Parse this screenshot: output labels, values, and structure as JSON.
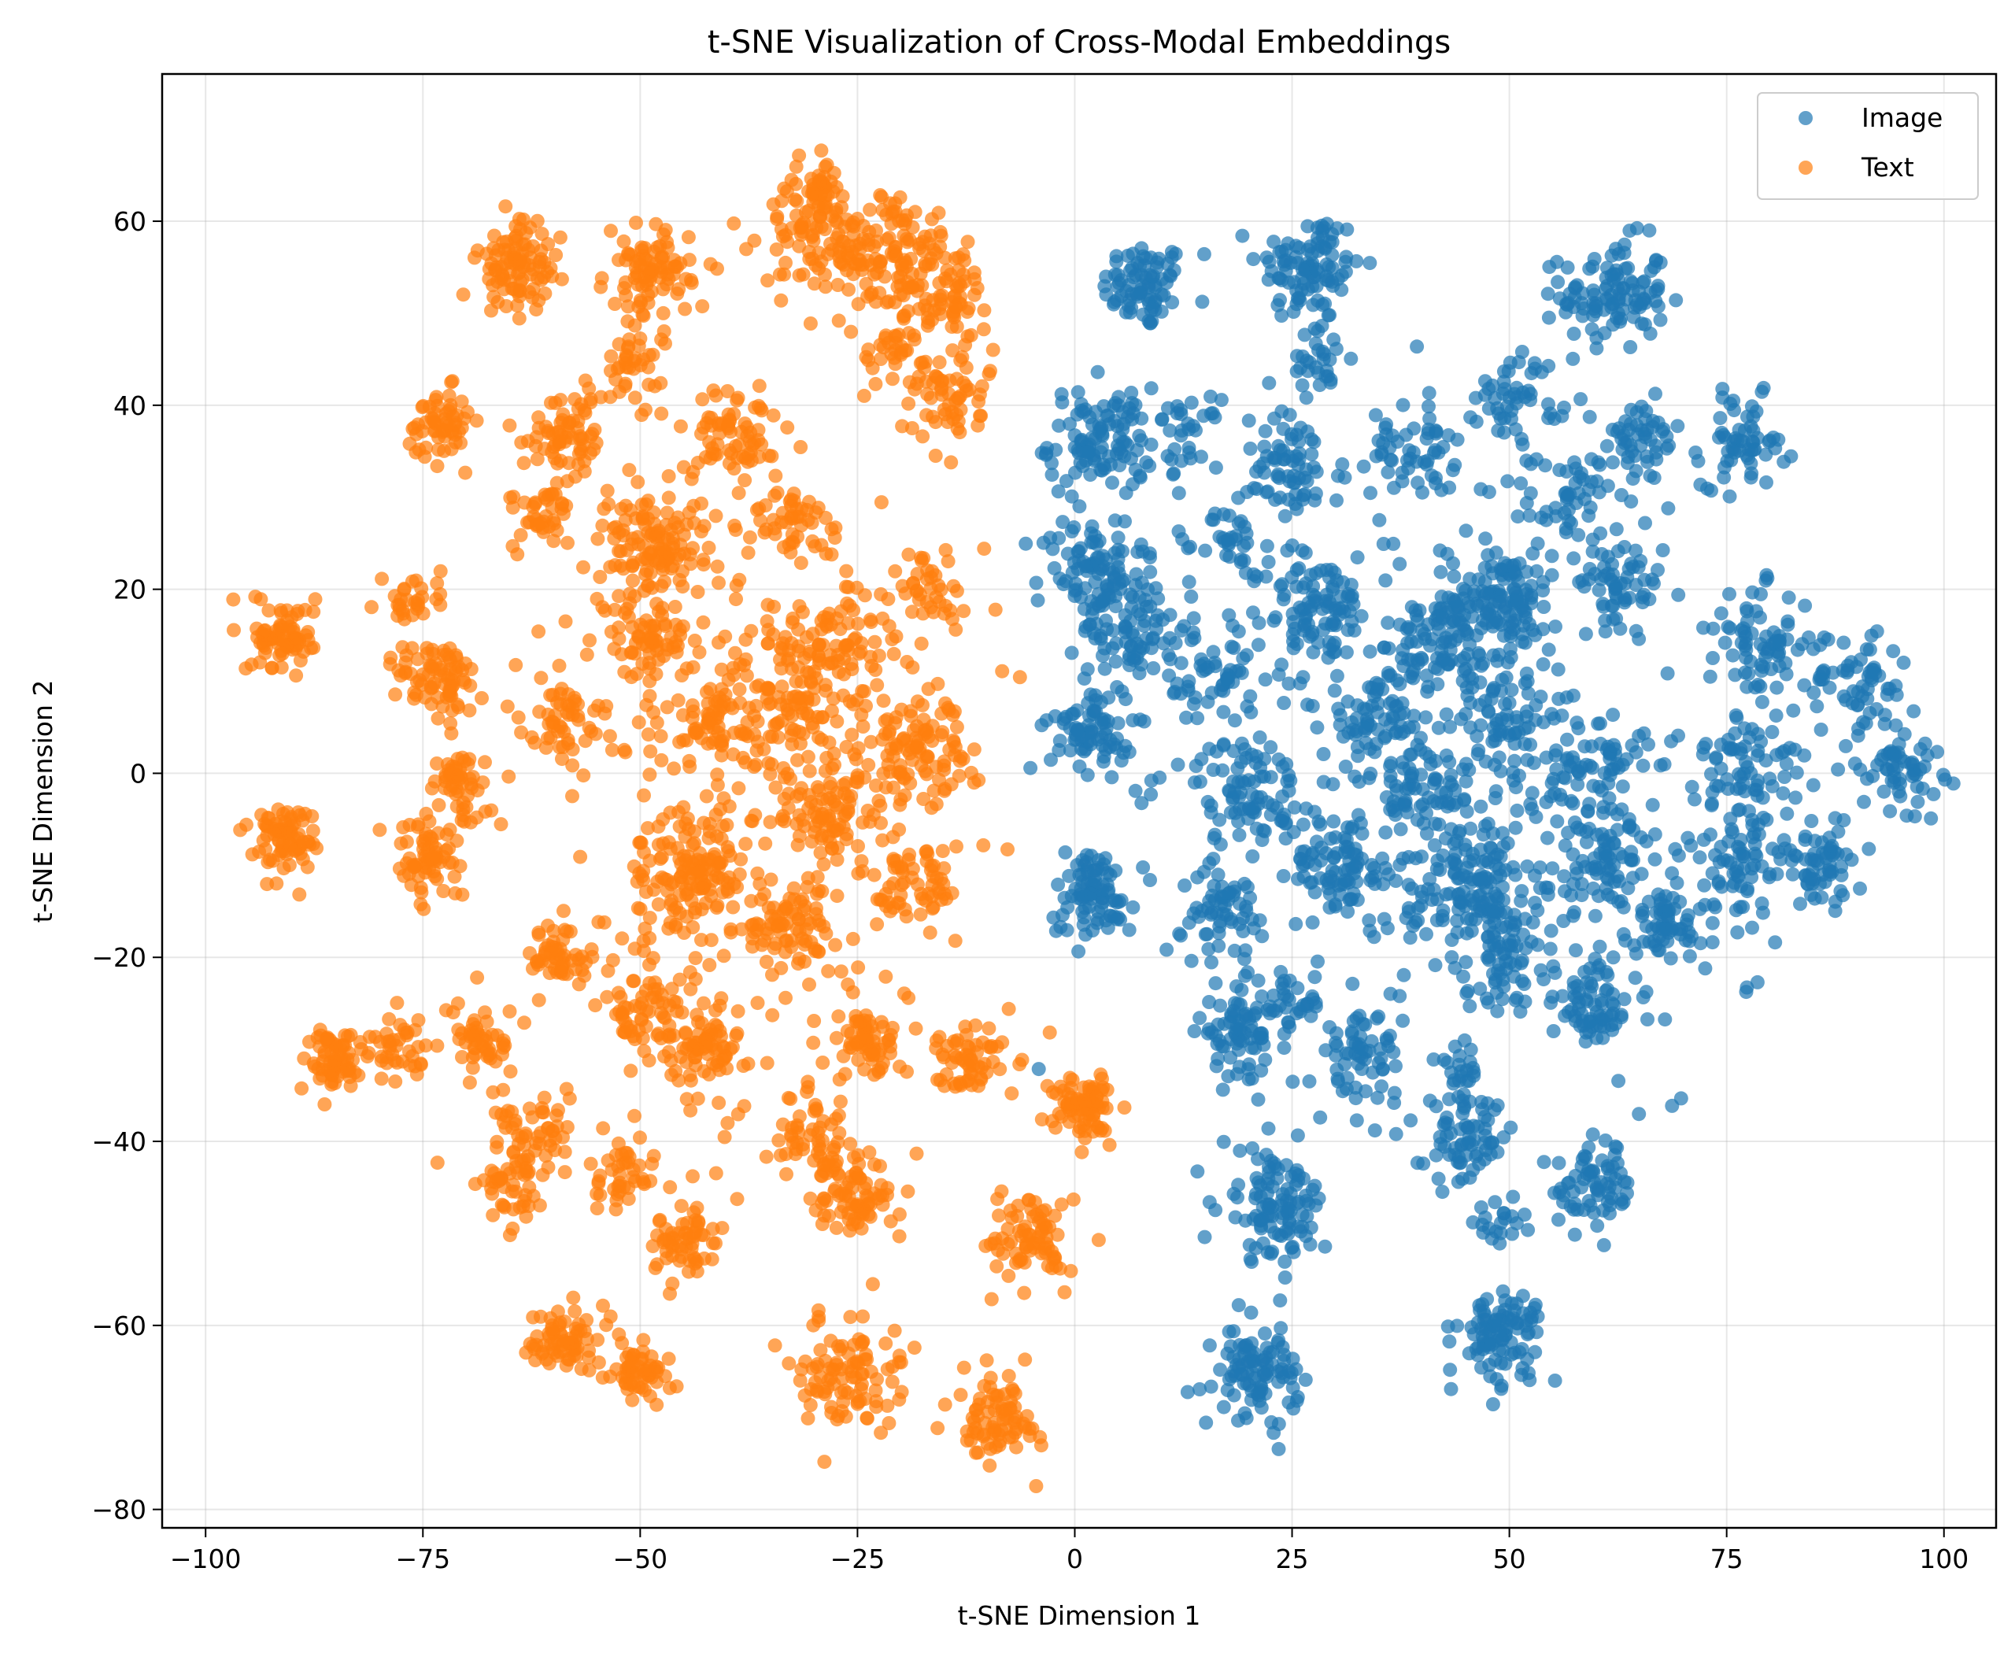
{
  "chart_data": {
    "type": "scatter",
    "title": "t-SNE Visualization of Cross-Modal Embeddings",
    "xlabel": "t-SNE Dimension 1",
    "ylabel": "t-SNE Dimension 2",
    "xlim": [
      -105,
      106
    ],
    "ylim": [
      -82,
      76
    ],
    "xticks": [
      -100,
      -75,
      -50,
      -25,
      0,
      25,
      50,
      75,
      100
    ],
    "xtick_labels": [
      "−100",
      "−75",
      "−50",
      "−25",
      "0",
      "25",
      "50",
      "75",
      "100"
    ],
    "yticks": [
      -80,
      -60,
      -40,
      -20,
      0,
      20,
      40,
      60
    ],
    "ytick_labels": [
      "−80",
      "−60",
      "−40",
      "−20",
      "0",
      "20",
      "40",
      "60"
    ],
    "grid": true,
    "legend_position": "top-right",
    "series": [
      {
        "name": "Image",
        "color": "#1f77b4",
        "alpha": 0.7,
        "clusters": [
          {
            "cx": 8,
            "cy": 53,
            "r": 4,
            "n": 80
          },
          {
            "cx": 27,
            "cy": 55,
            "r": 5,
            "n": 100
          },
          {
            "cx": 62,
            "cy": 52,
            "r": 5,
            "n": 110
          },
          {
            "cx": 28,
            "cy": 45,
            "r": 3,
            "n": 30
          },
          {
            "cx": 3,
            "cy": 36,
            "r": 5,
            "n": 110
          },
          {
            "cx": 13,
            "cy": 37,
            "r": 3,
            "n": 30
          },
          {
            "cx": 25,
            "cy": 33,
            "r": 5,
            "n": 70
          },
          {
            "cx": 39,
            "cy": 35,
            "r": 4,
            "n": 50
          },
          {
            "cx": 51,
            "cy": 41,
            "r": 4,
            "n": 50
          },
          {
            "cx": 57,
            "cy": 30,
            "r": 4,
            "n": 50
          },
          {
            "cx": 65,
            "cy": 36,
            "r": 4,
            "n": 50
          },
          {
            "cx": 77,
            "cy": 36,
            "r": 4,
            "n": 60
          },
          {
            "cx": 2,
            "cy": 22,
            "r": 5,
            "n": 90
          },
          {
            "cx": 7,
            "cy": 16,
            "r": 5,
            "n": 80
          },
          {
            "cx": 18,
            "cy": 25,
            "r": 3,
            "n": 30
          },
          {
            "cx": 28,
            "cy": 18,
            "r": 5,
            "n": 80
          },
          {
            "cx": 42,
            "cy": 14,
            "r": 4,
            "n": 60
          },
          {
            "cx": 49,
            "cy": 19,
            "r": 5,
            "n": 130
          },
          {
            "cx": 63,
            "cy": 21,
            "r": 4,
            "n": 60
          },
          {
            "cx": 79,
            "cy": 14,
            "r": 5,
            "n": 70
          },
          {
            "cx": 90,
            "cy": 10,
            "r": 5,
            "n": 60
          },
          {
            "cx": 2,
            "cy": 5,
            "r": 4,
            "n": 80
          },
          {
            "cx": 16,
            "cy": 10,
            "r": 5,
            "n": 50
          },
          {
            "cx": 35,
            "cy": 6,
            "r": 4,
            "n": 50
          },
          {
            "cx": 49,
            "cy": 6,
            "r": 4,
            "n": 50
          },
          {
            "cx": 95,
            "cy": 1,
            "r": 4,
            "n": 60
          },
          {
            "cx": 20,
            "cy": -2,
            "r": 5,
            "n": 80
          },
          {
            "cx": 40,
            "cy": -2,
            "r": 5,
            "n": 60
          },
          {
            "cx": 60,
            "cy": 0,
            "r": 5,
            "n": 60
          },
          {
            "cx": 78,
            "cy": 1,
            "r": 5,
            "n": 70
          },
          {
            "cx": 2,
            "cy": -13,
            "r": 4,
            "n": 90
          },
          {
            "cx": 17,
            "cy": -15,
            "r": 4,
            "n": 60
          },
          {
            "cx": 31,
            "cy": -10,
            "r": 5,
            "n": 90
          },
          {
            "cx": 46,
            "cy": -12,
            "r": 6,
            "n": 130
          },
          {
            "cx": 62,
            "cy": -10,
            "r": 5,
            "n": 70
          },
          {
            "cx": 76,
            "cy": -10,
            "r": 5,
            "n": 70
          },
          {
            "cx": 86,
            "cy": -10,
            "r": 4,
            "n": 60
          },
          {
            "cx": 50,
            "cy": -20,
            "r": 4,
            "n": 60
          },
          {
            "cx": 68,
            "cy": -17,
            "r": 4,
            "n": 50
          },
          {
            "cx": 60,
            "cy": -25,
            "r": 4,
            "n": 70
          },
          {
            "cx": 19,
            "cy": -28,
            "r": 4,
            "n": 80
          },
          {
            "cx": 33,
            "cy": -31,
            "r": 4,
            "n": 60
          },
          {
            "cx": 25,
            "cy": -25,
            "r": 3,
            "n": 30
          },
          {
            "cx": 44,
            "cy": -32,
            "r": 2,
            "n": 20
          },
          {
            "cx": 45,
            "cy": -40,
            "r": 4,
            "n": 70
          },
          {
            "cx": 60,
            "cy": -45,
            "r": 4,
            "n": 70
          },
          {
            "cx": 23,
            "cy": -47,
            "r": 5,
            "n": 110
          },
          {
            "cx": 49,
            "cy": -49,
            "r": 2,
            "n": 20
          },
          {
            "cx": 21,
            "cy": -65,
            "r": 4,
            "n": 100
          },
          {
            "cx": 49,
            "cy": -61,
            "r": 4,
            "n": 100
          },
          {
            "cx": 40,
            "cy": 10,
            "r": 25,
            "n": 200
          },
          {
            "cx": 50,
            "cy": -10,
            "r": 25,
            "n": 150
          }
        ]
      },
      {
        "name": "Text",
        "color": "#ff7f0e",
        "alpha": 0.7,
        "clusters": [
          {
            "cx": -64,
            "cy": 55,
            "r": 4,
            "n": 100
          },
          {
            "cx": -49,
            "cy": 54,
            "r": 4,
            "n": 90
          },
          {
            "cx": -30,
            "cy": 59,
            "r": 5,
            "n": 90
          },
          {
            "cx": -21,
            "cy": 56,
            "r": 6,
            "n": 120
          },
          {
            "cx": -15,
            "cy": 52,
            "r": 4,
            "n": 70
          },
          {
            "cx": -29,
            "cy": 64,
            "r": 2,
            "n": 30
          },
          {
            "cx": -73,
            "cy": 38,
            "r": 3,
            "n": 60
          },
          {
            "cx": -58,
            "cy": 37,
            "r": 4,
            "n": 70
          },
          {
            "cx": -51,
            "cy": 44,
            "r": 3,
            "n": 40
          },
          {
            "cx": -39,
            "cy": 37,
            "r": 4,
            "n": 70
          },
          {
            "cx": -15,
            "cy": 41,
            "r": 4,
            "n": 60
          },
          {
            "cx": -21,
            "cy": 46,
            "r": 3,
            "n": 30
          },
          {
            "cx": -61,
            "cy": 28,
            "r": 3,
            "n": 40
          },
          {
            "cx": -49,
            "cy": 25,
            "r": 5,
            "n": 120
          },
          {
            "cx": -32,
            "cy": 27,
            "r": 4,
            "n": 50
          },
          {
            "cx": -91,
            "cy": 15,
            "r": 3,
            "n": 80
          },
          {
            "cx": -76,
            "cy": 19,
            "r": 3,
            "n": 30
          },
          {
            "cx": -73,
            "cy": 10,
            "r": 4,
            "n": 80
          },
          {
            "cx": -49,
            "cy": 15,
            "r": 4,
            "n": 60
          },
          {
            "cx": -28,
            "cy": 14,
            "r": 5,
            "n": 80
          },
          {
            "cx": -17,
            "cy": 20,
            "r": 4,
            "n": 40
          },
          {
            "cx": -59,
            "cy": 6,
            "r": 3,
            "n": 50
          },
          {
            "cx": -42,
            "cy": 6,
            "r": 3,
            "n": 50
          },
          {
            "cx": -33,
            "cy": 8,
            "r": 5,
            "n": 60
          },
          {
            "cx": -18,
            "cy": 3,
            "r": 5,
            "n": 90
          },
          {
            "cx": -71,
            "cy": -1,
            "r": 3,
            "n": 50
          },
          {
            "cx": -91,
            "cy": -7,
            "r": 3,
            "n": 80
          },
          {
            "cx": -74,
            "cy": -9,
            "r": 4,
            "n": 70
          },
          {
            "cx": -28,
            "cy": -4,
            "r": 5,
            "n": 80
          },
          {
            "cx": -44,
            "cy": -11,
            "r": 5,
            "n": 110
          },
          {
            "cx": -33,
            "cy": -17,
            "r": 4,
            "n": 70
          },
          {
            "cx": -18,
            "cy": -12,
            "r": 4,
            "n": 60
          },
          {
            "cx": -59,
            "cy": -20,
            "r": 3,
            "n": 50
          },
          {
            "cx": -85,
            "cy": -31,
            "r": 3,
            "n": 70
          },
          {
            "cx": -78,
            "cy": -30,
            "r": 3,
            "n": 40
          },
          {
            "cx": -68,
            "cy": -29,
            "r": 3,
            "n": 50
          },
          {
            "cx": -49,
            "cy": -27,
            "r": 4,
            "n": 60
          },
          {
            "cx": -42,
            "cy": -30,
            "r": 3,
            "n": 50
          },
          {
            "cx": -24,
            "cy": -29,
            "r": 3,
            "n": 60
          },
          {
            "cx": -12,
            "cy": -31,
            "r": 3,
            "n": 60
          },
          {
            "cx": 1,
            "cy": -36,
            "r": 3,
            "n": 80
          },
          {
            "cx": -30,
            "cy": -40,
            "r": 4,
            "n": 60
          },
          {
            "cx": -62,
            "cy": -40,
            "r": 4,
            "n": 60
          },
          {
            "cx": -65,
            "cy": -46,
            "r": 3,
            "n": 40
          },
          {
            "cx": -52,
            "cy": -44,
            "r": 3,
            "n": 40
          },
          {
            "cx": -25,
            "cy": -46,
            "r": 4,
            "n": 70
          },
          {
            "cx": -45,
            "cy": -51,
            "r": 3,
            "n": 60
          },
          {
            "cx": -5,
            "cy": -51,
            "r": 4,
            "n": 80
          },
          {
            "cx": -59,
            "cy": -61,
            "r": 3,
            "n": 70
          },
          {
            "cx": -50,
            "cy": -65,
            "r": 3,
            "n": 60
          },
          {
            "cx": -26,
            "cy": -65,
            "r": 5,
            "n": 100
          },
          {
            "cx": -9,
            "cy": -70,
            "r": 4,
            "n": 80
          },
          {
            "cx": -35,
            "cy": 5,
            "r": 22,
            "n": 250
          },
          {
            "cx": -40,
            "cy": -25,
            "r": 18,
            "n": 120
          }
        ]
      }
    ]
  }
}
